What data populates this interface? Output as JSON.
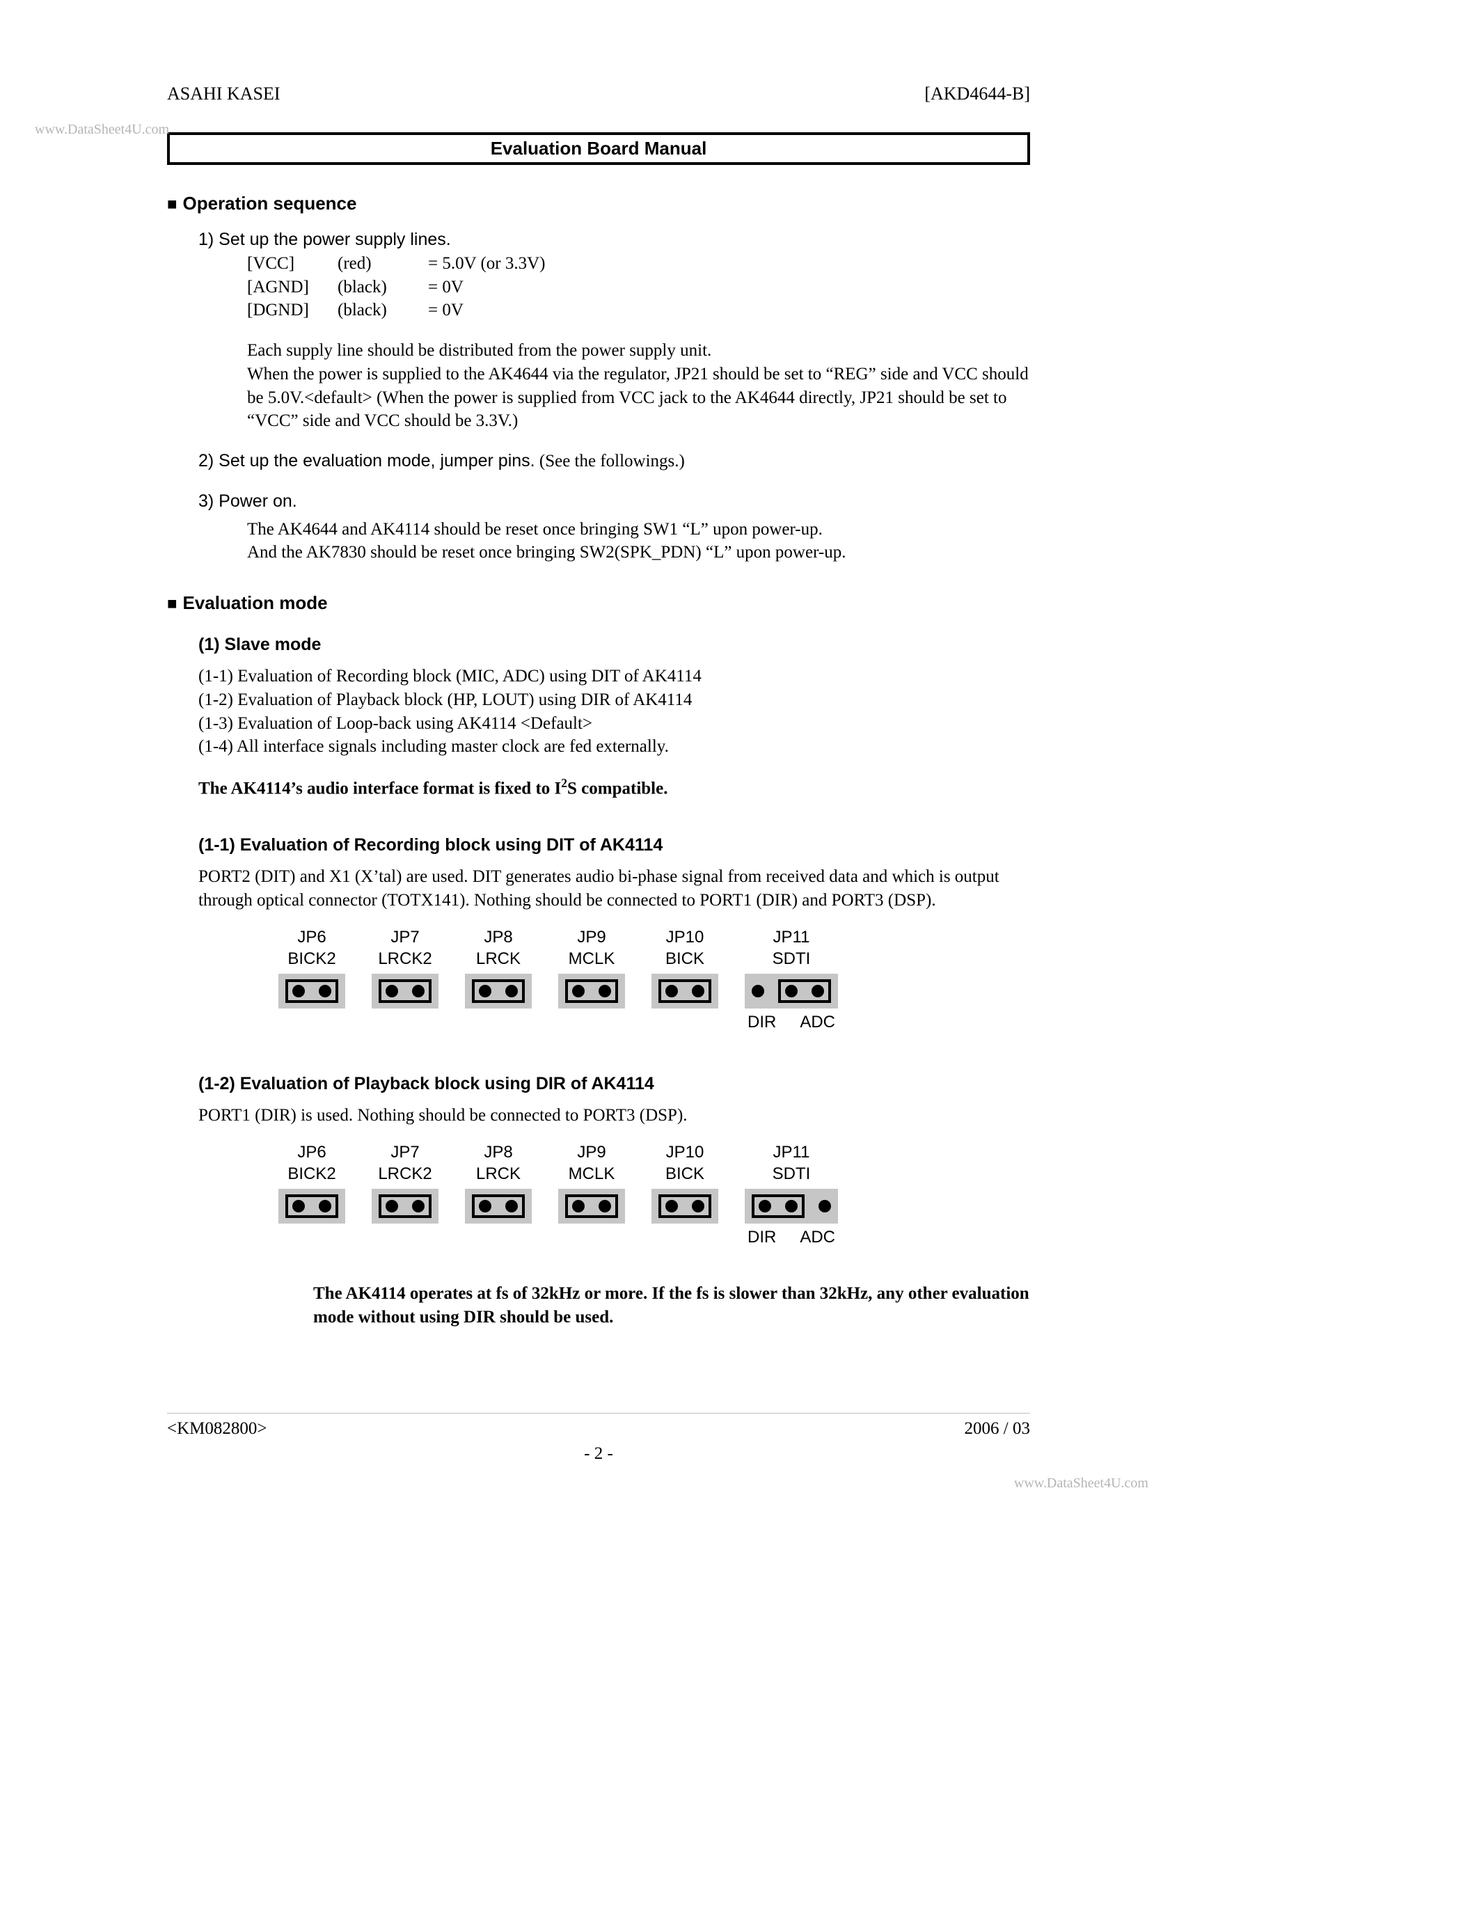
{
  "header": {
    "left": "ASAHI KASEI",
    "right": "[AKD4644-B]"
  },
  "watermark": "www.DataSheet4U.com",
  "title": "Evaluation Board Manual",
  "sec1": {
    "heading": "Operation sequence",
    "step1_intro": "1) Set up the power supply lines.",
    "supply": [
      {
        "name": "[VCC]",
        "color": "(red)",
        "val": "= 5.0V (or 3.3V)"
      },
      {
        "name": "[AGND]",
        "color": "(black)",
        "val": "= 0V"
      },
      {
        "name": "[DGND]",
        "color": "(black)",
        "val": "= 0V"
      }
    ],
    "para1a": "Each supply line should be distributed from the power supply unit.",
    "para1b": "When the power is supplied to the AK4644 via the regulator, JP21 should be set to “REG” side and VCC should be 5.0V.<default>  (When the power is supplied from VCC jack to the AK4644 directly, JP21 should be set to “VCC” side and VCC should be 3.3V.)",
    "step2": "2) Set up the evaluation mode, jumper pins.",
    "step2_tail": " (See the followings.)",
    "step3": "3) Power on.",
    "para3a": "The AK4644 and AK4114 should be reset once bringing SW1 “L” upon power-up.",
    "para3b": "And the AK7830 should be reset once bringing SW2(SPK_PDN) “L” upon power-up."
  },
  "sec2": {
    "heading": "Evaluation mode",
    "sub1": "(1) Slave mode",
    "items": [
      "(1-1) Evaluation of Recording block (MIC, ADC) using DIT of AK4114",
      "(1-2) Evaluation of Playback block (HP, LOUT) using DIR of AK4114",
      "(1-3) Evaluation of Loop-back using AK4114 <Default>",
      "(1-4) All interface signals including master clock are fed externally."
    ],
    "note_fixed_a": "The AK4114’s audio interface format is fixed to I",
    "note_fixed_sup": "2",
    "note_fixed_b": "S compatible.",
    "s11": {
      "title": "(1-1) Evaluation of Recording block using DIT of AK4114",
      "body": "PORT2 (DIT) and X1 (X’tal) are used. DIT generates audio bi-phase signal from received data and which is output through optical connector (TOTX141). Nothing should be connected to PORT1 (DIR) and PORT3 (DSP)."
    },
    "s12": {
      "title": "(1-2) Evaluation of Playback block using DIR of AK4114",
      "body": "PORT1 (DIR) is used. Nothing should be connected to PORT3 (DSP)."
    },
    "note_fs": "The AK4114 operates at fs of 32kHz or more. If the fs is slower than 32kHz, any other evaluation mode without using DIR should be used."
  },
  "jumpers_common": [
    {
      "jp": "JP6",
      "sig": "BICK2"
    },
    {
      "jp": "JP7",
      "sig": "LRCK2"
    },
    {
      "jp": "JP8",
      "sig": "LRCK"
    },
    {
      "jp": "JP9",
      "sig": "MCLK"
    },
    {
      "jp": "JP10",
      "sig": "BICK"
    }
  ],
  "jp11": {
    "jp": "JP11",
    "sig": "SDTI",
    "left": "DIR",
    "right": "ADC"
  },
  "footer": {
    "left": "<KM082800>",
    "right": "2006 / 03",
    "page": "- 2 -"
  }
}
